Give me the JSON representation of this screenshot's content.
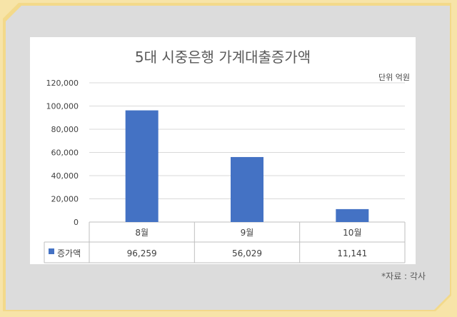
{
  "chart_data": {
    "type": "bar",
    "title": "5대 시중은행 가계대출증가액",
    "unit_note": "단위 억원",
    "categories": [
      "8월",
      "9월",
      "10월"
    ],
    "series": [
      {
        "name": "증가액",
        "values": [
          96259,
          56029,
          11141
        ],
        "labels": [
          "96,259",
          "56,029",
          "11,141"
        ],
        "color": "#4472c4"
      }
    ],
    "ylim": [
      0,
      120000
    ],
    "yticks": [
      0,
      20000,
      40000,
      60000,
      80000,
      100000,
      120000
    ],
    "ytick_labels": [
      "0",
      "20,000",
      "40,000",
      "60,000",
      "80,000",
      "100,000",
      "120,000"
    ],
    "grid": true,
    "legend": "data-table"
  },
  "source_note": "*자료 : 각사"
}
